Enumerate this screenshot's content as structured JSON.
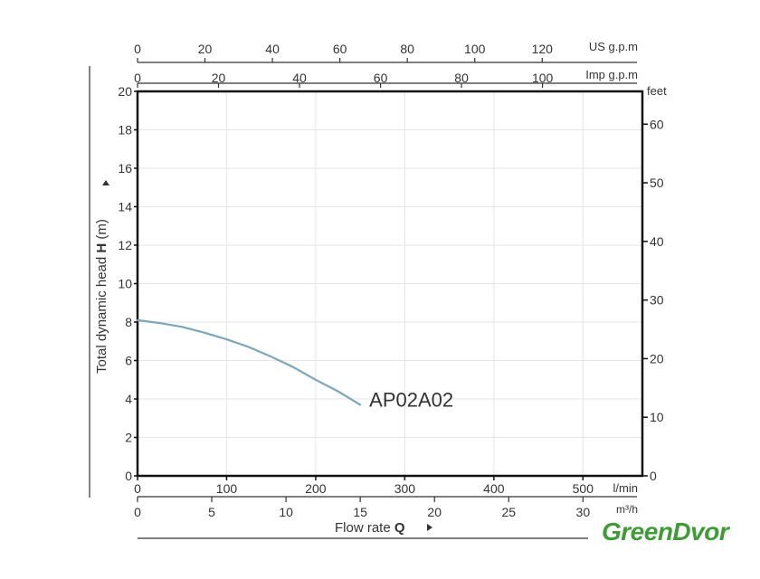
{
  "chart_data": {
    "type": "line",
    "ylabel": "Total dynamic head",
    "ylabel_symbol": "H",
    "ylabel_unit": "(m)",
    "ylim": [
      0,
      20
    ],
    "yticks": [
      "0",
      "2",
      "4",
      "6",
      "8",
      "10",
      "12",
      "14",
      "16",
      "18",
      "20"
    ],
    "y2_unit": "feet",
    "y2lim": [
      0,
      65.6
    ],
    "y2ticks": [
      "0",
      "10",
      "20",
      "30",
      "40",
      "50",
      "60"
    ],
    "xlabel": "Flow rate",
    "xlabel_symbol": "Q",
    "xlim": [
      0,
      566.7
    ],
    "x_lmin_unit": "l/min",
    "x_lmin_ticks": [
      "0",
      "100",
      "200",
      "300",
      "400",
      "500"
    ],
    "x_m3h_unit": "m³/h",
    "x_m3h_ticks": [
      "0",
      "5",
      "10",
      "15",
      "20",
      "25",
      "30"
    ],
    "x_us_unit": "US g.p.m",
    "x_us_ticks": [
      "0",
      "20",
      "40",
      "60",
      "80",
      "100",
      "120"
    ],
    "x_imp_unit": "Imp g.p.m",
    "x_imp_ticks": [
      "0",
      "20",
      "40",
      "60",
      "80",
      "100"
    ],
    "grid": true,
    "series": [
      {
        "name": "AP02A02",
        "color": "#7aa8b8",
        "x": [
          0,
          25,
          50,
          75,
          100,
          125,
          150,
          175,
          200,
          225,
          250
        ],
        "y": [
          8.1,
          7.95,
          7.75,
          7.45,
          7.1,
          6.7,
          6.2,
          5.65,
          5.0,
          4.4,
          3.7
        ]
      }
    ]
  },
  "brand": {
    "text": "GreenDvor",
    "color": "#3f9b35"
  }
}
